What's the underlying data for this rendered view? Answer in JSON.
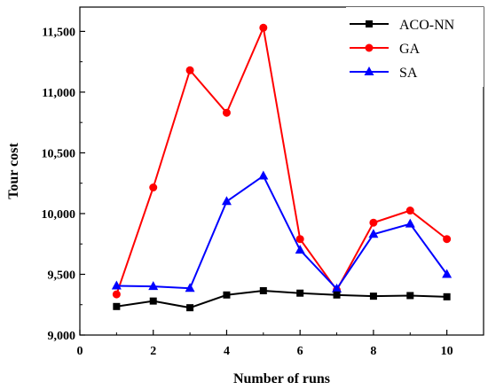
{
  "chart_data": {
    "type": "line",
    "title": "",
    "xlabel": "Number of runs",
    "ylabel": "Tour cost",
    "xlim": [
      0,
      11
    ],
    "ylim": [
      9000,
      11700
    ],
    "x_ticks": [
      0,
      2,
      4,
      6,
      8,
      10
    ],
    "x_tick_labels": [
      "0",
      "2",
      "4",
      "6",
      "8",
      "10"
    ],
    "y_ticks": [
      9000,
      9500,
      10000,
      10500,
      11000,
      11500
    ],
    "y_tick_labels": [
      "9,000",
      "9,500",
      "10,000",
      "10,500",
      "11,000",
      "11,500"
    ],
    "grid": false,
    "legend_position": "top-right",
    "x": [
      1,
      2,
      3,
      4,
      5,
      6,
      7,
      8,
      9,
      10
    ],
    "series": [
      {
        "name": "ACO-NN",
        "color": "#000000",
        "marker": "square",
        "values": [
          9235,
          9280,
          9225,
          9330,
          9365,
          9345,
          9330,
          9320,
          9325,
          9315
        ]
      },
      {
        "name": "GA",
        "color": "#ff0000",
        "marker": "circle",
        "values": [
          9335,
          10215,
          11180,
          10830,
          11530,
          9790,
          9370,
          9925,
          10025,
          9790
        ]
      },
      {
        "name": "SA",
        "color": "#0000ff",
        "marker": "triangle",
        "values": [
          9405,
          9400,
          9385,
          10100,
          10310,
          9700,
          9380,
          9830,
          9915,
          9500
        ]
      }
    ]
  }
}
